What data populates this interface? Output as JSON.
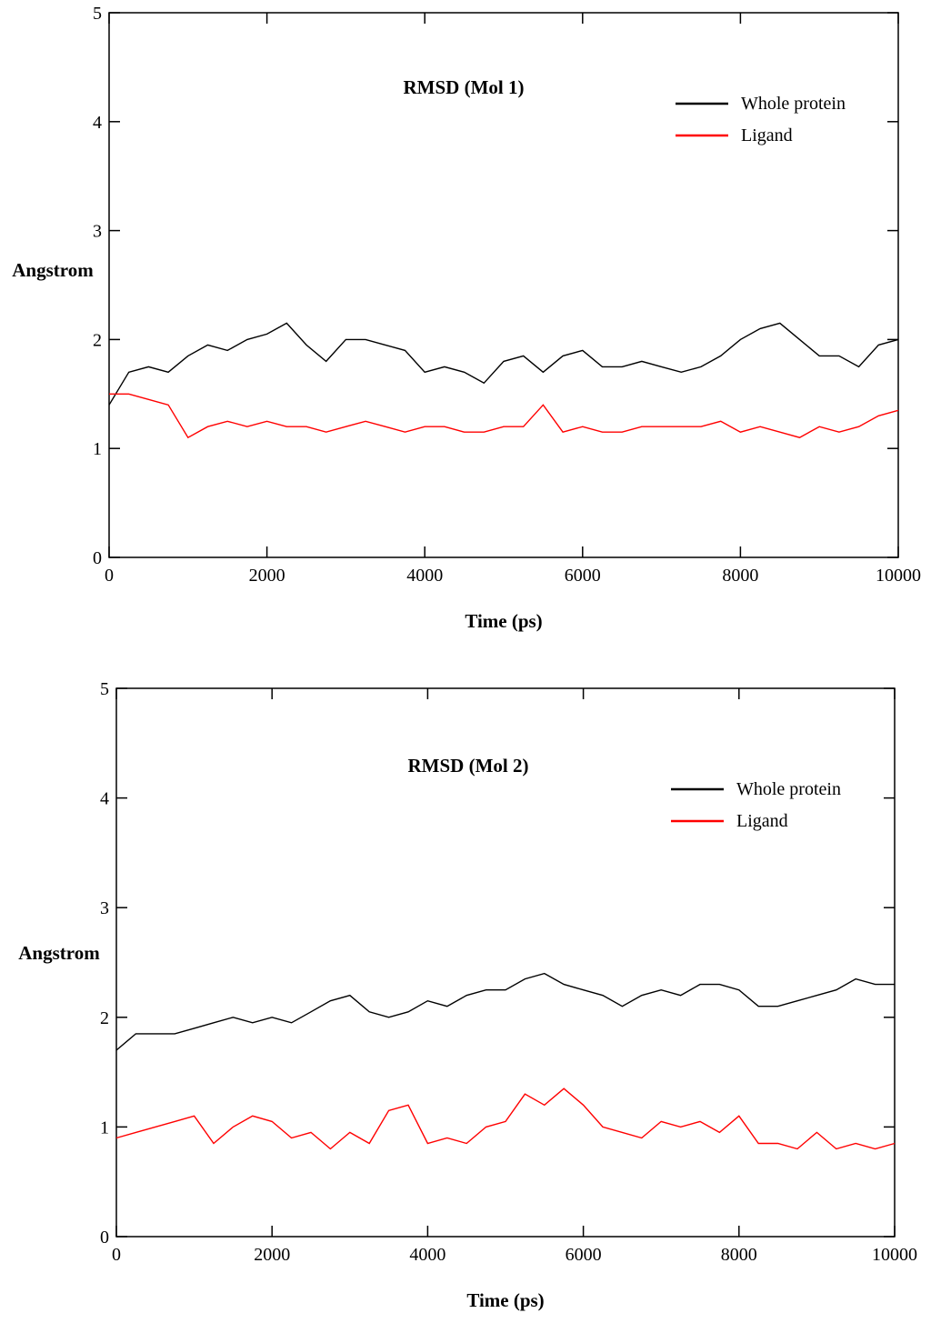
{
  "chart_data": [
    {
      "type": "line",
      "title": "RMSD (Mol 1)",
      "x_label": "Time (ps)",
      "y_label": "Angstrom",
      "x": [
        0,
        250,
        500,
        750,
        1000,
        1250,
        1500,
        1750,
        2000,
        2250,
        2500,
        2750,
        3000,
        3250,
        3500,
        3750,
        4000,
        4250,
        4500,
        4750,
        5000,
        5250,
        5500,
        5750,
        6000,
        6250,
        6500,
        6750,
        7000,
        7250,
        7500,
        7750,
        8000,
        8250,
        8500,
        8750,
        9000,
        9250,
        9500,
        9750,
        10000
      ],
      "series": [
        {
          "name": "Whole protein",
          "color": "#000000",
          "values": [
            1.4,
            1.7,
            1.75,
            1.7,
            1.85,
            1.95,
            1.9,
            2.0,
            2.05,
            2.15,
            1.95,
            1.8,
            2.0,
            2.0,
            1.95,
            1.9,
            1.7,
            1.75,
            1.7,
            1.6,
            1.8,
            1.85,
            1.7,
            1.85,
            1.9,
            1.75,
            1.75,
            1.8,
            1.75,
            1.7,
            1.75,
            1.85,
            2.0,
            2.1,
            2.15,
            2.0,
            1.85,
            1.85,
            1.75,
            1.95,
            2.0
          ]
        },
        {
          "name": "Ligand",
          "color": "#ff0000",
          "values": [
            1.5,
            1.5,
            1.45,
            1.4,
            1.1,
            1.2,
            1.25,
            1.2,
            1.25,
            1.2,
            1.2,
            1.15,
            1.2,
            1.25,
            1.2,
            1.15,
            1.2,
            1.2,
            1.15,
            1.15,
            1.2,
            1.2,
            1.4,
            1.15,
            1.2,
            1.15,
            1.15,
            1.2,
            1.2,
            1.2,
            1.2,
            1.25,
            1.15,
            1.2,
            1.15,
            1.1,
            1.2,
            1.15,
            1.2,
            1.3,
            1.35
          ]
        }
      ],
      "xlim": [
        0,
        10000
      ],
      "xticks": [
        0,
        2000,
        4000,
        6000,
        8000,
        10000
      ],
      "ylim": [
        0,
        5
      ],
      "yticks": [
        0,
        1,
        2,
        3,
        4,
        5
      ],
      "legend": "upper right"
    },
    {
      "type": "line",
      "title": "RMSD (Mol 2)",
      "x_label": "Time (ps)",
      "y_label": "Angstrom",
      "x": [
        0,
        250,
        500,
        750,
        1000,
        1250,
        1500,
        1750,
        2000,
        2250,
        2500,
        2750,
        3000,
        3250,
        3500,
        3750,
        4000,
        4250,
        4500,
        4750,
        5000,
        5250,
        5500,
        5750,
        6000,
        6250,
        6500,
        6750,
        7000,
        7250,
        7500,
        7750,
        8000,
        8250,
        8500,
        8750,
        9000,
        9250,
        9500,
        9750,
        10000
      ],
      "series": [
        {
          "name": "Whole protein",
          "color": "#000000",
          "values": [
            1.7,
            1.85,
            1.85,
            1.85,
            1.9,
            1.95,
            2.0,
            1.95,
            2.0,
            1.95,
            2.05,
            2.15,
            2.2,
            2.05,
            2.0,
            2.05,
            2.15,
            2.1,
            2.2,
            2.25,
            2.25,
            2.35,
            2.4,
            2.3,
            2.25,
            2.2,
            2.1,
            2.2,
            2.25,
            2.2,
            2.3,
            2.3,
            2.25,
            2.1,
            2.1,
            2.15,
            2.2,
            2.25,
            2.35,
            2.3,
            2.3
          ]
        },
        {
          "name": "Ligand",
          "color": "#ff0000",
          "values": [
            0.9,
            0.95,
            1.0,
            1.05,
            1.1,
            0.85,
            1.0,
            1.1,
            1.05,
            0.9,
            0.95,
            0.8,
            0.95,
            0.85,
            1.15,
            1.2,
            0.85,
            0.9,
            0.85,
            1.0,
            1.05,
            1.3,
            1.2,
            1.35,
            1.2,
            1.0,
            0.95,
            0.9,
            1.05,
            1.0,
            1.05,
            0.95,
            1.1,
            0.85,
            0.85,
            0.8,
            0.95,
            0.8,
            0.85,
            0.8,
            0.85
          ]
        }
      ],
      "xlim": [
        0,
        10000
      ],
      "xticks": [
        0,
        2000,
        4000,
        6000,
        8000,
        10000
      ],
      "ylim": [
        0,
        5
      ],
      "yticks": [
        0,
        1,
        2,
        3,
        4,
        5
      ],
      "legend": "upper right"
    }
  ]
}
